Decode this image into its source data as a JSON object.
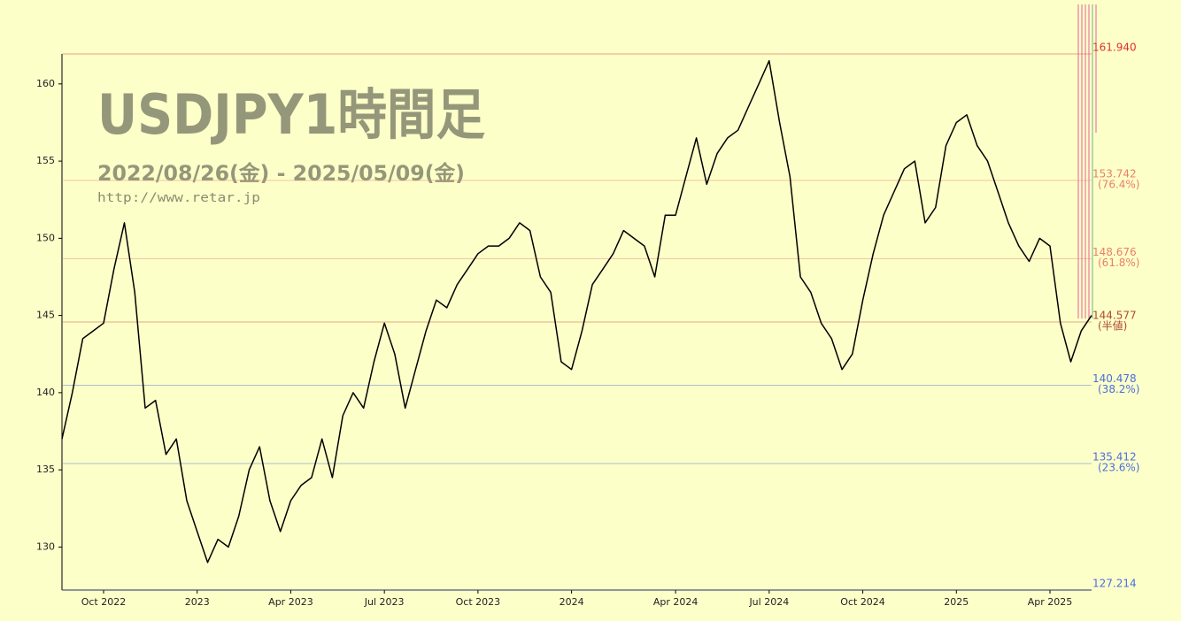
{
  "chart_data": {
    "type": "line",
    "title": "USDJPY1時間足",
    "subtitle": "2022/08/26(金) - 2025/05/09(金)",
    "source": "http://www.retar.jp",
    "categories": [
      null,
      null,
      null,
      null,
      "Oct 2022",
      null,
      null,
      null,
      null,
      null,
      null,
      null,
      null,
      "2023",
      null,
      null,
      null,
      null,
      null,
      null,
      null,
      null,
      "Apr 2023",
      null,
      null,
      null,
      null,
      null,
      null,
      null,
      null,
      "Jul 2023",
      null,
      null,
      null,
      null,
      null,
      null,
      null,
      null,
      "Oct 2023",
      null,
      null,
      null,
      null,
      null,
      null,
      null,
      null,
      "2024",
      null,
      null,
      null,
      null,
      null,
      null,
      null,
      null,
      null,
      "Apr 2024",
      null,
      null,
      null,
      null,
      null,
      null,
      null,
      null,
      "Jul 2024",
      null,
      null,
      null,
      null,
      null,
      null,
      null,
      null,
      "Oct 2024",
      null,
      null,
      null,
      null,
      null,
      null,
      null,
      null,
      "2025",
      null,
      null,
      null,
      null,
      null,
      null,
      null,
      null,
      "Apr 2025",
      null,
      null,
      null,
      null
    ],
    "values": [
      137,
      140,
      143.5,
      144,
      144.5,
      148,
      151,
      146.5,
      139,
      139.5,
      136,
      137,
      133,
      131,
      129,
      130.5,
      130,
      132,
      135,
      136.5,
      133,
      131,
      133,
      134,
      134.5,
      137,
      134.5,
      138.5,
      140,
      139,
      142,
      144.5,
      142.5,
      139,
      141.5,
      144,
      146,
      145.5,
      147,
      148,
      149,
      149.5,
      149.5,
      150,
      151,
      150.5,
      147.5,
      146.5,
      142,
      141.5,
      144,
      147,
      148,
      149,
      150.5,
      150,
      149.5,
      147.5,
      151.5,
      151.5,
      154,
      156.5,
      153.5,
      155.5,
      156.5,
      157,
      158.5,
      160,
      161.5,
      157.5,
      154,
      147.5,
      146.5,
      144.5,
      143.5,
      141.5,
      142.5,
      146,
      149,
      151.5,
      153,
      154.5,
      155,
      151,
      152,
      156,
      157.5,
      158,
      156,
      155,
      153,
      151,
      149.5,
      148.5,
      150,
      149.5,
      144.5,
      142,
      144,
      145
    ],
    "color": "#000000",
    "ylim": [
      127.214,
      161.94
    ],
    "yticks": [
      130,
      135,
      140,
      145,
      150,
      155,
      160
    ],
    "levels": [
      {
        "value": 161.94,
        "label": "161.940",
        "color": "#e03030"
      },
      {
        "value": 153.742,
        "note": "(76.4%)",
        "color": "#e8806a"
      },
      {
        "value": 148.676,
        "note": "(61.8%)",
        "color": "#e8806a"
      },
      {
        "value": 144.577,
        "note": "(半値)",
        "color": "#b04a30"
      },
      {
        "value": 140.478,
        "note": "(38.2%)",
        "color": "#4a6ee0"
      },
      {
        "value": 135.412,
        "note": "(23.6%)",
        "color": "#4a6ee0"
      },
      {
        "value": 127.214,
        "color": "#4a6ee0"
      }
    ]
  }
}
